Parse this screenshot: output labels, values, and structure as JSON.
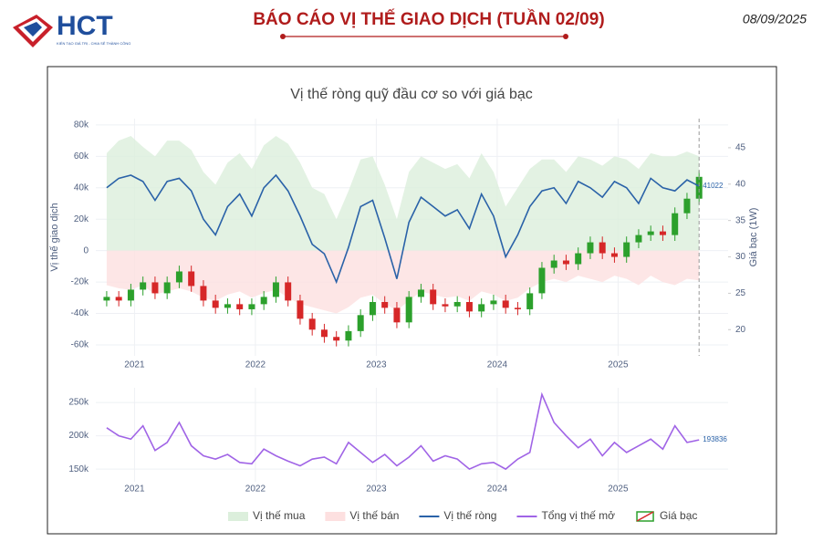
{
  "header": {
    "logo": "HCT",
    "slogan": "KIẾN TẠO GIÁ TRỊ - CHIA SẺ THÀNH CÔNG",
    "title": "BÁO CÁO VỊ THẾ GIAO DỊCH (TUẦN 02/09)",
    "date": "08/09/2025"
  },
  "chart_data": [
    {
      "type": "combo",
      "title": "Vị thế ròng quỹ đầu cơ so với giá bạc",
      "ylabel": "Vị thế giao dịch",
      "y2label": "Giá bạc (1W)",
      "x": [
        2020.77,
        2020.87,
        2020.97,
        2021.07,
        2021.17,
        2021.27,
        2021.37,
        2021.47,
        2021.57,
        2021.67,
        2021.77,
        2021.87,
        2021.97,
        2022.07,
        2022.17,
        2022.27,
        2022.37,
        2022.47,
        2022.57,
        2022.67,
        2022.77,
        2022.87,
        2022.97,
        2023.07,
        2023.17,
        2023.27,
        2023.37,
        2023.47,
        2023.57,
        2023.67,
        2023.77,
        2023.87,
        2023.97,
        2024.07,
        2024.17,
        2024.27,
        2024.37,
        2024.47,
        2024.57,
        2024.67,
        2024.77,
        2024.87,
        2024.97,
        2025.07,
        2025.17,
        2025.27,
        2025.37,
        2025.47,
        2025.57,
        2025.67
      ],
      "xlim": [
        2020.68,
        2025.91
      ],
      "xticks": [
        2021,
        2022,
        2023,
        2024,
        2025
      ],
      "ylim": [
        -67000,
        84000
      ],
      "yticks": [
        {
          "value": -60000,
          "label": "-60k"
        },
        {
          "value": -40000,
          "label": "-40k"
        },
        {
          "value": -20000,
          "label": "-20k"
        },
        0,
        {
          "value": 20000,
          "label": "20k"
        },
        {
          "value": 40000,
          "label": "40k"
        },
        {
          "value": 60000,
          "label": "60k"
        },
        {
          "value": 80000,
          "label": "80k"
        }
      ],
      "y2lim": [
        16.4,
        49
      ],
      "y2ticks": [
        20,
        25,
        30,
        35,
        40,
        45
      ],
      "grid": true,
      "series": [
        {
          "name": "Vị thế mua",
          "type": "area",
          "color": "#dcefdc",
          "values": [
            62000,
            70000,
            73000,
            66000,
            60000,
            70000,
            70000,
            64000,
            50000,
            42000,
            56000,
            62000,
            52000,
            67000,
            73000,
            68000,
            56000,
            40000,
            36000,
            20000,
            38000,
            58000,
            60000,
            42000,
            20000,
            50000,
            60000,
            56000,
            52000,
            55000,
            46000,
            62000,
            50000,
            28000,
            40000,
            52000,
            58000,
            58000,
            50000,
            60000,
            58000,
            54000,
            60000,
            58000,
            52000,
            62000,
            60000,
            60000,
            63000,
            60022
          ]
        },
        {
          "name": "Vị thế bán",
          "type": "area",
          "color": "#fde0e0",
          "values": [
            -22000,
            -24000,
            -25000,
            -22000,
            -28000,
            -26000,
            -24000,
            -26000,
            -30000,
            -32000,
            -28000,
            -26000,
            -30000,
            -27000,
            -25000,
            -30000,
            -34000,
            -36000,
            -38000,
            -40000,
            -36000,
            -30000,
            -28000,
            -34000,
            -38000,
            -32000,
            -26000,
            -28000,
            -30000,
            -29000,
            -32000,
            -26000,
            -28000,
            -32000,
            -30000,
            -24000,
            -20000,
            -18000,
            -20000,
            -16000,
            -18000,
            -20000,
            -16000,
            -18000,
            -22000,
            -16000,
            -20000,
            -22000,
            -18000,
            -19000
          ]
        },
        {
          "name": "Vị thế ròng",
          "type": "line",
          "color": "#2a62a8",
          "values": [
            40000,
            46000,
            48000,
            44000,
            32000,
            44000,
            46000,
            38000,
            20000,
            10000,
            28000,
            36000,
            22000,
            40000,
            48000,
            38000,
            22000,
            4000,
            -2000,
            -20000,
            2000,
            28000,
            32000,
            8000,
            -18000,
            18000,
            34000,
            28000,
            22000,
            26000,
            14000,
            36000,
            22000,
            -4000,
            10000,
            28000,
            38000,
            40000,
            30000,
            44000,
            40000,
            34000,
            44000,
            40000,
            30000,
            46000,
            40000,
            38000,
            45000,
            41022
          ]
        },
        {
          "name": "Giá bạc",
          "type": "candlestick",
          "axis": "y2",
          "up_color": "#2ca02c",
          "down_color": "#d62728",
          "open": [
            24.0,
            24.5,
            24.0,
            25.5,
            26.5,
            25.0,
            26.5,
            28.0,
            26.0,
            24.0,
            23.0,
            23.5,
            22.8,
            23.5,
            24.5,
            26.5,
            24.0,
            21.5,
            20.0,
            19.0,
            18.5,
            19.8,
            22.0,
            23.8,
            23.0,
            21.0,
            24.5,
            25.5,
            23.5,
            23.2,
            23.8,
            22.5,
            23.5,
            24.0,
            23.0,
            22.8,
            25.0,
            28.5,
            29.5,
            29.0,
            30.5,
            32.0,
            30.5,
            30.0,
            32.0,
            33.0,
            33.5,
            33.0,
            36.0,
            38.0
          ],
          "high": [
            25.3,
            25.3,
            26.3,
            27.3,
            27.3,
            27.3,
            28.8,
            28.8,
            26.8,
            24.8,
            24.3,
            24.3,
            24.3,
            25.3,
            27.3,
            27.3,
            24.8,
            22.3,
            20.8,
            19.8,
            20.6,
            22.8,
            24.6,
            24.6,
            23.8,
            25.3,
            26.3,
            26.3,
            24.3,
            24.6,
            24.6,
            24.3,
            24.8,
            24.8,
            23.8,
            25.8,
            29.3,
            30.3,
            30.3,
            31.3,
            32.8,
            32.8,
            31.3,
            32.8,
            33.8,
            34.3,
            34.3,
            36.8,
            38.8,
            41.8
          ],
          "low": [
            23.2,
            23.2,
            23.2,
            24.7,
            24.2,
            24.2,
            25.7,
            25.2,
            23.2,
            22.2,
            22.2,
            22.0,
            22.0,
            22.7,
            23.7,
            23.2,
            20.7,
            19.2,
            18.2,
            17.7,
            17.7,
            19.0,
            21.2,
            22.2,
            20.2,
            20.2,
            23.7,
            22.7,
            22.4,
            22.4,
            21.7,
            21.7,
            22.7,
            22.2,
            22.0,
            22.0,
            24.2,
            27.7,
            28.2,
            28.2,
            29.7,
            29.7,
            29.2,
            29.2,
            31.2,
            32.2,
            32.2,
            32.2,
            35.2,
            37.2
          ],
          "close": [
            24.5,
            24.0,
            25.5,
            26.5,
            25.0,
            26.5,
            28.0,
            26.0,
            24.0,
            23.0,
            23.5,
            22.8,
            23.5,
            24.5,
            26.5,
            24.0,
            21.5,
            20.0,
            19.0,
            18.5,
            19.8,
            22.0,
            23.8,
            23.0,
            21.0,
            24.5,
            25.5,
            23.5,
            23.2,
            23.8,
            22.5,
            23.5,
            24.0,
            23.0,
            22.8,
            25.0,
            28.5,
            29.5,
            29.0,
            30.5,
            32.0,
            30.5,
            30.0,
            32.0,
            33.0,
            33.5,
            33.0,
            36.0,
            38.0,
            41.0
          ]
        }
      ]
    },
    {
      "type": "line",
      "x": [
        2020.77,
        2020.87,
        2020.97,
        2021.07,
        2021.17,
        2021.27,
        2021.37,
        2021.47,
        2021.57,
        2021.67,
        2021.77,
        2021.87,
        2021.97,
        2022.07,
        2022.17,
        2022.27,
        2022.37,
        2022.47,
        2022.57,
        2022.67,
        2022.77,
        2022.87,
        2022.97,
        2023.07,
        2023.17,
        2023.27,
        2023.37,
        2023.47,
        2023.57,
        2023.67,
        2023.77,
        2023.87,
        2023.97,
        2024.07,
        2024.17,
        2024.27,
        2024.37,
        2024.47,
        2024.57,
        2024.67,
        2024.77,
        2024.87,
        2024.97,
        2025.07,
        2025.17,
        2025.27,
        2025.37,
        2025.47,
        2025.57,
        2025.67
      ],
      "xlim": [
        2020.68,
        2025.91
      ],
      "xticks": [
        2021,
        2022,
        2023,
        2024,
        2025
      ],
      "ylim": [
        131000,
        272000
      ],
      "yticks": [
        {
          "value": 150000,
          "label": "150k"
        },
        {
          "value": 200000,
          "label": "200k"
        },
        {
          "value": 250000,
          "label": "250k"
        }
      ],
      "grid": true,
      "series": [
        {
          "name": "Tổng vị thế mở",
          "color": "#a064e6",
          "values": [
            212000,
            200000,
            195000,
            215000,
            178000,
            190000,
            220000,
            185000,
            170000,
            165000,
            172000,
            160000,
            158000,
            180000,
            170000,
            162000,
            155000,
            165000,
            168000,
            158000,
            190000,
            175000,
            160000,
            172000,
            155000,
            168000,
            185000,
            162000,
            170000,
            165000,
            150000,
            158000,
            160000,
            150000,
            165000,
            175000,
            262000,
            220000,
            200000,
            182000,
            195000,
            170000,
            190000,
            175000,
            185000,
            195000,
            180000,
            215000,
            190000,
            193836
          ]
        }
      ]
    }
  ]
}
